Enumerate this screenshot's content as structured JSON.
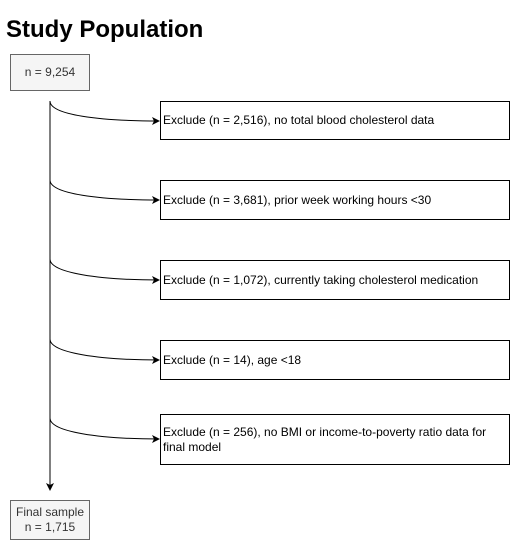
{
  "title": "Study Population",
  "start": {
    "label": "n = 9,254"
  },
  "exclusions": [
    {
      "label": "Exclude (n = 2,516), no total blood cholesterol data"
    },
    {
      "label": "Exclude (n = 3,681), prior week working hours <30"
    },
    {
      "label": "Exclude (n = 1,072), currently taking cholesterol medication"
    },
    {
      "label": "Exclude (n = 14), age <18"
    },
    {
      "label": "Exclude (n = 256), no BMI or income-to-poverty ratio data for final model"
    }
  ],
  "final": {
    "line1": "Final sample",
    "line2": "n = 1,715"
  },
  "colors": {
    "line": "#000000",
    "grey_fill": "#f5f5f5",
    "grey_border": "#666666"
  }
}
